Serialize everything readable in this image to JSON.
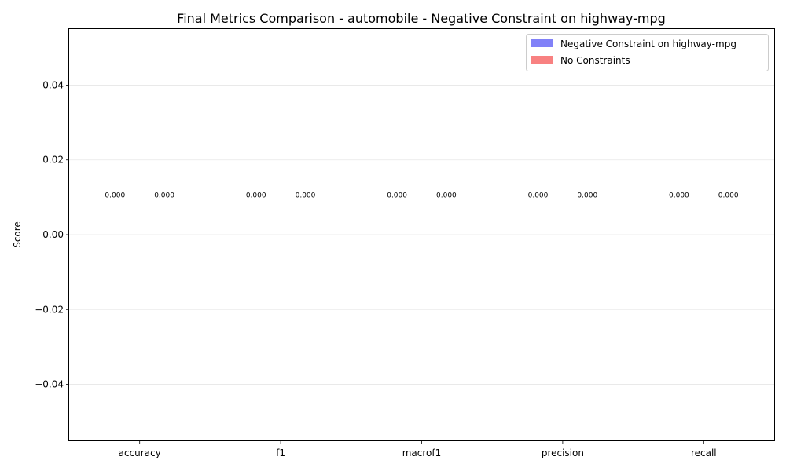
{
  "chart_data": {
    "type": "bar",
    "title": "Final Metrics Comparison - automobile - Negative Constraint on highway-mpg",
    "xlabel": "",
    "ylabel": "Score",
    "categories": [
      "accuracy",
      "f1",
      "macrof1",
      "precision",
      "recall"
    ],
    "series": [
      {
        "name": "Negative Constraint on highway-mpg",
        "values": [
          0.0,
          0.0,
          0.0,
          0.0,
          0.0
        ],
        "color": "#4b4bf5"
      },
      {
        "name": "No Constraints",
        "values": [
          0.0,
          0.0,
          0.0,
          0.0,
          0.0
        ],
        "color": "#f54b4b"
      }
    ],
    "data_labels": [
      [
        "0.000",
        "0.000",
        "0.000",
        "0.000",
        "0.000"
      ],
      [
        "0.000",
        "0.000",
        "0.000",
        "0.000",
        "0.000"
      ]
    ],
    "ylim": [
      -0.055,
      0.055
    ],
    "yticks": [
      -0.04,
      -0.02,
      0.0,
      0.02,
      0.04
    ],
    "ytick_labels": [
      "−0.04",
      "−0.02",
      "0.00",
      "0.02",
      "0.04"
    ],
    "grid": "y",
    "legend_position": "top-right"
  }
}
